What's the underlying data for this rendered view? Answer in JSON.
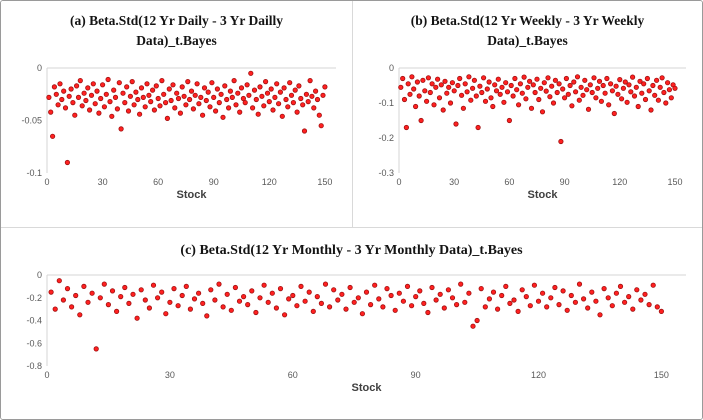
{
  "colors": {
    "marker_fill": "#ff2020",
    "marker_stroke": "#a01010",
    "axis_line": "#d6d6d6",
    "tick_text": "#595959",
    "panel_divider": "#d9d9d9"
  },
  "chart_data": [
    {
      "type": "scatter",
      "title": "(a) Beta.Std(12 Yr Daily - 3 Yr Dailly Data)_t.Bayes",
      "xlabel": "Stock",
      "xlim": [
        0,
        156
      ],
      "ylim": [
        -0.1,
        0
      ],
      "xticks": [
        0,
        30,
        60,
        90,
        120,
        150
      ],
      "yticks": [
        0,
        -0.05,
        -0.1
      ],
      "ytick_labels": [
        "0",
        "-0.05",
        "-0.1"
      ],
      "grid": false,
      "legend": "none",
      "x_mode": "index-1-to-150",
      "y": [
        -0.028,
        -0.042,
        -0.065,
        -0.018,
        -0.025,
        -0.035,
        -0.015,
        -0.03,
        -0.022,
        -0.038,
        -0.09,
        -0.027,
        -0.02,
        -0.033,
        -0.045,
        -0.017,
        -0.028,
        -0.012,
        -0.036,
        -0.024,
        -0.031,
        -0.019,
        -0.04,
        -0.026,
        -0.015,
        -0.034,
        -0.022,
        -0.043,
        -0.029,
        -0.016,
        -0.037,
        -0.025,
        -0.011,
        -0.032,
        -0.046,
        -0.021,
        -0.028,
        -0.039,
        -0.014,
        -0.058,
        -0.024,
        -0.033,
        -0.018,
        -0.041,
        -0.027,
        -0.013,
        -0.035,
        -0.023,
        -0.03,
        -0.044,
        -0.019,
        -0.028,
        -0.037,
        -0.015,
        -0.026,
        -0.032,
        -0.021,
        -0.04,
        -0.017,
        -0.029,
        -0.036,
        -0.012,
        -0.025,
        -0.033,
        -0.048,
        -0.02,
        -0.031,
        -0.016,
        -0.038,
        -0.024,
        -0.029,
        -0.043,
        -0.018,
        -0.027,
        -0.035,
        -0.013,
        -0.03,
        -0.022,
        -0.039,
        -0.026,
        -0.015,
        -0.034,
        -0.028,
        -0.045,
        -0.019,
        -0.031,
        -0.023,
        -0.037,
        -0.014,
        -0.028,
        -0.041,
        -0.02,
        -0.033,
        -0.025,
        -0.047,
        -0.017,
        -0.03,
        -0.038,
        -0.022,
        -0.028,
        -0.012,
        -0.035,
        -0.024,
        -0.042,
        -0.019,
        -0.029,
        -0.033,
        -0.016,
        -0.026,
        -0.005,
        -0.038,
        -0.021,
        -0.03,
        -0.044,
        -0.018,
        -0.027,
        -0.036,
        -0.013,
        -0.024,
        -0.032,
        -0.02,
        -0.04,
        -0.028,
        -0.015,
        -0.034,
        -0.023,
        -0.046,
        -0.019,
        -0.03,
        -0.037,
        -0.014,
        -0.026,
        -0.033,
        -0.021,
        -0.042,
        -0.017,
        -0.029,
        -0.035,
        -0.06,
        -0.025,
        -0.032,
        -0.012,
        -0.027,
        -0.038,
        -0.022,
        -0.03,
        -0.045,
        -0.055,
        -0.026,
        -0.018
      ]
    },
    {
      "type": "scatter",
      "title": "(b) Beta.Std(12 Yr Weekly - 3 Yr Weekly Data)_t.Bayes",
      "xlabel": "Stock",
      "xlim": [
        0,
        156
      ],
      "ylim": [
        -0.3,
        0
      ],
      "xticks": [
        0,
        30,
        60,
        90,
        120,
        150
      ],
      "yticks": [
        0,
        -0.1,
        -0.2,
        -0.3
      ],
      "ytick_labels": [
        "0",
        "-0.1",
        "-0.2",
        "-0.3"
      ],
      "grid": false,
      "legend": "none",
      "x_mode": "index-1-to-150",
      "y": [
        -0.055,
        -0.03,
        -0.09,
        -0.17,
        -0.045,
        -0.075,
        -0.025,
        -0.06,
        -0.11,
        -0.04,
        -0.08,
        -0.15,
        -0.035,
        -0.065,
        -0.095,
        -0.028,
        -0.07,
        -0.045,
        -0.105,
        -0.055,
        -0.032,
        -0.085,
        -0.048,
        -0.12,
        -0.038,
        -0.072,
        -0.055,
        -0.1,
        -0.042,
        -0.065,
        -0.16,
        -0.05,
        -0.03,
        -0.078,
        -0.115,
        -0.045,
        -0.068,
        -0.025,
        -0.092,
        -0.058,
        -0.035,
        -0.08,
        -0.17,
        -0.052,
        -0.07,
        -0.028,
        -0.095,
        -0.06,
        -0.04,
        -0.085,
        -0.11,
        -0.048,
        -0.065,
        -0.032,
        -0.075,
        -0.055,
        -0.098,
        -0.042,
        -0.068,
        -0.15,
        -0.05,
        -0.08,
        -0.03,
        -0.062,
        -0.105,
        -0.045,
        -0.072,
        -0.026,
        -0.088,
        -0.055,
        -0.038,
        -0.115,
        -0.048,
        -0.07,
        -0.032,
        -0.09,
        -0.058,
        -0.125,
        -0.042,
        -0.066,
        -0.028,
        -0.082,
        -0.052,
        -0.1,
        -0.035,
        -0.07,
        -0.045,
        -0.21,
        -0.06,
        -0.085,
        -0.03,
        -0.075,
        -0.05,
        -0.108,
        -0.04,
        -0.068,
        -0.025,
        -0.092,
        -0.055,
        -0.078,
        -0.035,
        -0.062,
        -0.118,
        -0.048,
        -0.07,
        -0.028,
        -0.085,
        -0.058,
        -0.038,
        -0.095,
        -0.05,
        -0.072,
        -0.03,
        -0.105,
        -0.045,
        -0.065,
        -0.13,
        -0.052,
        -0.075,
        -0.033,
        -0.088,
        -0.058,
        -0.04,
        -0.098,
        -0.048,
        -0.068,
        -0.026,
        -0.08,
        -0.055,
        -0.11,
        -0.038,
        -0.072,
        -0.045,
        -0.09,
        -0.03,
        -0.065,
        -0.12,
        -0.05,
        -0.078,
        -0.035,
        -0.092,
        -0.055,
        -0.028,
        -0.07,
        -0.1,
        -0.042,
        -0.062,
        -0.085,
        -0.048,
        -0.058
      ]
    },
    {
      "type": "scatter",
      "title": "(c) Beta.Std(12 Yr Monthly - 3 Yr Monthly Data)_t.Bayes",
      "xlabel": "Stock",
      "xlim": [
        0,
        156
      ],
      "ylim": [
        -0.8,
        0
      ],
      "xticks": [
        0,
        30,
        60,
        90,
        120,
        150
      ],
      "yticks": [
        0,
        -0.2,
        -0.4,
        -0.6,
        -0.8
      ],
      "ytick_labels": [
        "0",
        "-0.2",
        "-0.4",
        "-0.6",
        "-0.8"
      ],
      "grid": false,
      "legend": "none",
      "x_mode": "index-1-to-150",
      "y": [
        -0.15,
        -0.3,
        -0.05,
        -0.22,
        -0.12,
        -0.28,
        -0.18,
        -0.35,
        -0.1,
        -0.24,
        -0.16,
        -0.65,
        -0.2,
        -0.08,
        -0.26,
        -0.14,
        -0.32,
        -0.19,
        -0.11,
        -0.25,
        -0.17,
        -0.38,
        -0.13,
        -0.22,
        -0.29,
        -0.09,
        -0.2,
        -0.15,
        -0.34,
        -0.24,
        -0.12,
        -0.27,
        -0.18,
        -0.1,
        -0.3,
        -0.21,
        -0.16,
        -0.25,
        -0.36,
        -0.13,
        -0.22,
        -0.08,
        -0.28,
        -0.17,
        -0.31,
        -0.11,
        -0.23,
        -0.19,
        -0.26,
        -0.14,
        -0.33,
        -0.2,
        -0.09,
        -0.24,
        -0.16,
        -0.29,
        -0.12,
        -0.35,
        -0.21,
        -0.18,
        -0.27,
        -0.1,
        -0.23,
        -0.15,
        -0.32,
        -0.19,
        -0.25,
        -0.08,
        -0.28,
        -0.13,
        -0.22,
        -0.17,
        -0.3,
        -0.11,
        -0.24,
        -0.2,
        -0.34,
        -0.15,
        -0.26,
        -0.09,
        -0.21,
        -0.28,
        -0.12,
        -0.18,
        -0.31,
        -0.16,
        -0.23,
        -0.1,
        -0.27,
        -0.19,
        -0.14,
        -0.25,
        -0.33,
        -0.11,
        -0.22,
        -0.17,
        -0.29,
        -0.13,
        -0.2,
        -0.26,
        -0.08,
        -0.24,
        -0.16,
        -0.45,
        -0.4,
        -0.12,
        -0.28,
        -0.21,
        -0.15,
        -0.3,
        -0.18,
        -0.1,
        -0.25,
        -0.22,
        -0.32,
        -0.13,
        -0.19,
        -0.27,
        -0.09,
        -0.23,
        -0.16,
        -0.28,
        -0.2,
        -0.11,
        -0.26,
        -0.14,
        -0.31,
        -0.18,
        -0.24,
        -0.08,
        -0.21,
        -0.29,
        -0.15,
        -0.23,
        -0.35,
        -0.12,
        -0.2,
        -0.27,
        -0.16,
        -0.1,
        -0.24,
        -0.19,
        -0.3,
        -0.13,
        -0.22,
        -0.17,
        -0.26,
        -0.09,
        -0.28,
        -0.32
      ]
    }
  ]
}
